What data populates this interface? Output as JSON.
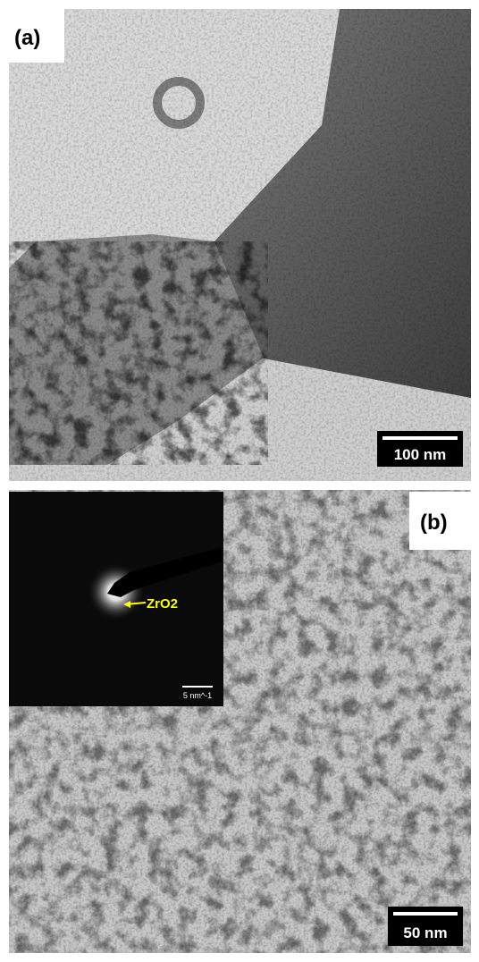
{
  "panel_a": {
    "label": "(a)",
    "scale_bar": "100 nm"
  },
  "panel_b": {
    "label": "(b)",
    "scale_bar": "50 nm",
    "inset": {
      "annotation": "ZrO2",
      "scale_bar": "5 nm^-1"
    }
  }
}
